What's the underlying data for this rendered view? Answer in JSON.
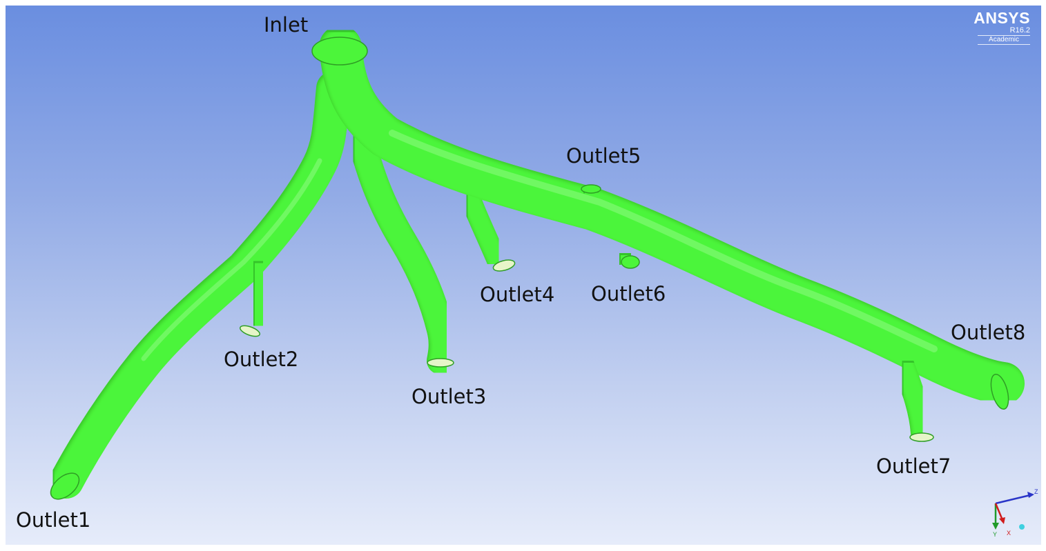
{
  "viewer": {
    "background_top": "#6a8ee0",
    "background_bottom": "#e6ecfa",
    "geometry_color": "#4cf53a",
    "outlet_rim_color": "#e6f5c8"
  },
  "logo": {
    "brand": "ANSYS",
    "release": "R16.2",
    "edition": "Academic"
  },
  "labels": {
    "inlet": "Inlet",
    "outlet1": "Outlet1",
    "outlet2": "Outlet2",
    "outlet3": "Outlet3",
    "outlet4": "Outlet4",
    "outlet5": "Outlet5",
    "outlet6": "Outlet6",
    "outlet7": "Outlet7",
    "outlet8": "Outlet8"
  },
  "triad": {
    "z_label": "Z",
    "y_label": "Y",
    "x_label": "X",
    "z_color": "#2a35c8",
    "y_color": "#1f9a2a",
    "x_color": "#d01c1c",
    "origin_color": "#3fd0e0"
  }
}
